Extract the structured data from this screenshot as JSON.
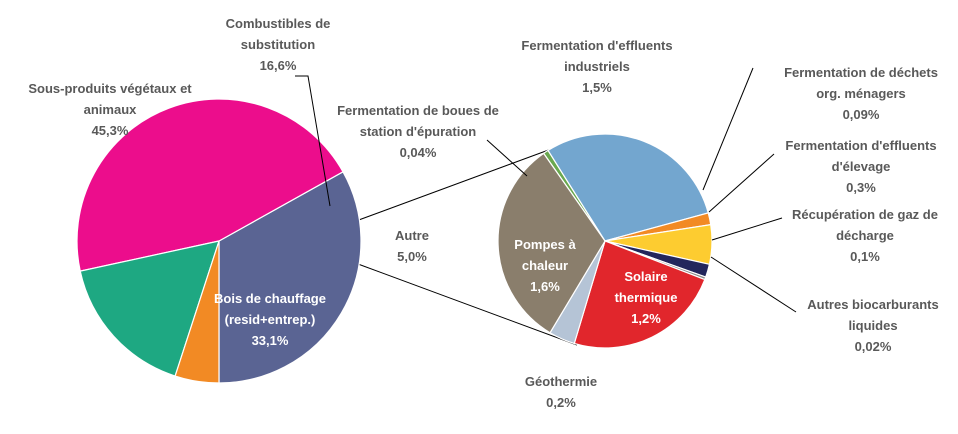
{
  "chart_data": [
    {
      "type": "pie",
      "slices": [
        {
          "label": [
            "Bois de chauffage",
            "(resid+entrep.)"
          ],
          "value": 33.1,
          "value_text": "33,1%",
          "color": "#5a6493",
          "label_inside": true
        },
        {
          "label": [
            "Sous-produits végétaux et",
            "animaux"
          ],
          "value": 45.3,
          "value_text": "45,3%",
          "color": "#ec0d8c",
          "label_inside": false
        },
        {
          "label": [
            "Combustibles de",
            "substitution"
          ],
          "value": 16.6,
          "value_text": "16,6%",
          "color": "#1ea882",
          "label_inside": false
        },
        {
          "label": [
            "Autre"
          ],
          "value": 5.0,
          "value_text": "5,0%",
          "color": "#f28a24",
          "label_inside": false
        }
      ]
    },
    {
      "type": "pie",
      "slices": [
        {
          "label": [
            "Fermentation de boues de",
            "station d'épuration"
          ],
          "value": 0.04,
          "value_text": "0,04%",
          "color": "#6aa84f"
        },
        {
          "label": [
            "Fermentation d'effluents",
            "industriels"
          ],
          "value": 1.5,
          "value_text": "1,5%",
          "color": "#73a6cf"
        },
        {
          "label": [
            "Fermentation de déchets",
            "org. ménagers"
          ],
          "value": 0.09,
          "value_text": "0,09%",
          "color": "#f28a24"
        },
        {
          "label": [
            "Fermentation d'effluents",
            "d'élevage"
          ],
          "value": 0.3,
          "value_text": "0,3%",
          "color": "#fdcc30"
        },
        {
          "label": [
            "Récupération de gaz de",
            "décharge"
          ],
          "value": 0.1,
          "value_text": "0,1%",
          "color": "#23265c"
        },
        {
          "label": [
            "Autres biocarburants",
            "liquides"
          ],
          "value": 0.02,
          "value_text": "0,02%",
          "color": "#8b8b8b"
        },
        {
          "label": [
            "Solaire",
            "thermique"
          ],
          "value": 1.2,
          "value_text": "1,2%",
          "color": "#e1262c"
        },
        {
          "label": [
            "Géothermie"
          ],
          "value": 0.2,
          "value_text": "0,2%",
          "color": "#b5c4d6"
        },
        {
          "label": [
            "Pompes à",
            "chaleur"
          ],
          "value": 1.6,
          "value_text": "1,6%",
          "color": "#8a7e6c"
        }
      ]
    }
  ]
}
